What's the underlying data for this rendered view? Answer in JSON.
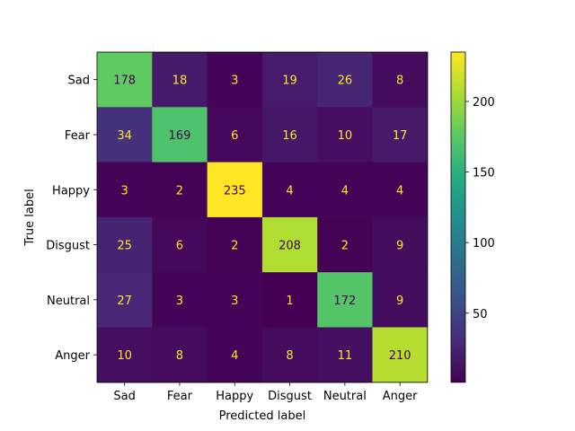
{
  "chart_data": {
    "type": "heatmap",
    "title": "",
    "xlabel": "Predicted label",
    "ylabel": "True label",
    "x_categories": [
      "Sad",
      "Fear",
      "Happy",
      "Disgust",
      "Neutral",
      "Anger"
    ],
    "y_categories": [
      "Sad",
      "Fear",
      "Happy",
      "Disgust",
      "Neutral",
      "Anger"
    ],
    "values": [
      [
        178,
        18,
        3,
        19,
        26,
        8
      ],
      [
        34,
        169,
        6,
        16,
        10,
        17
      ],
      [
        3,
        2,
        235,
        4,
        4,
        4
      ],
      [
        25,
        6,
        2,
        208,
        2,
        9
      ],
      [
        27,
        3,
        3,
        1,
        172,
        9
      ],
      [
        10,
        8,
        4,
        8,
        11,
        210
      ]
    ],
    "colormap": "viridis",
    "color_range": [
      1,
      235
    ],
    "colorbar_ticks": [
      50,
      100,
      150,
      200
    ],
    "text_color_light": "#fde725",
    "text_color_dark": "#440154",
    "grid": false,
    "legend": "colorbar-right"
  }
}
